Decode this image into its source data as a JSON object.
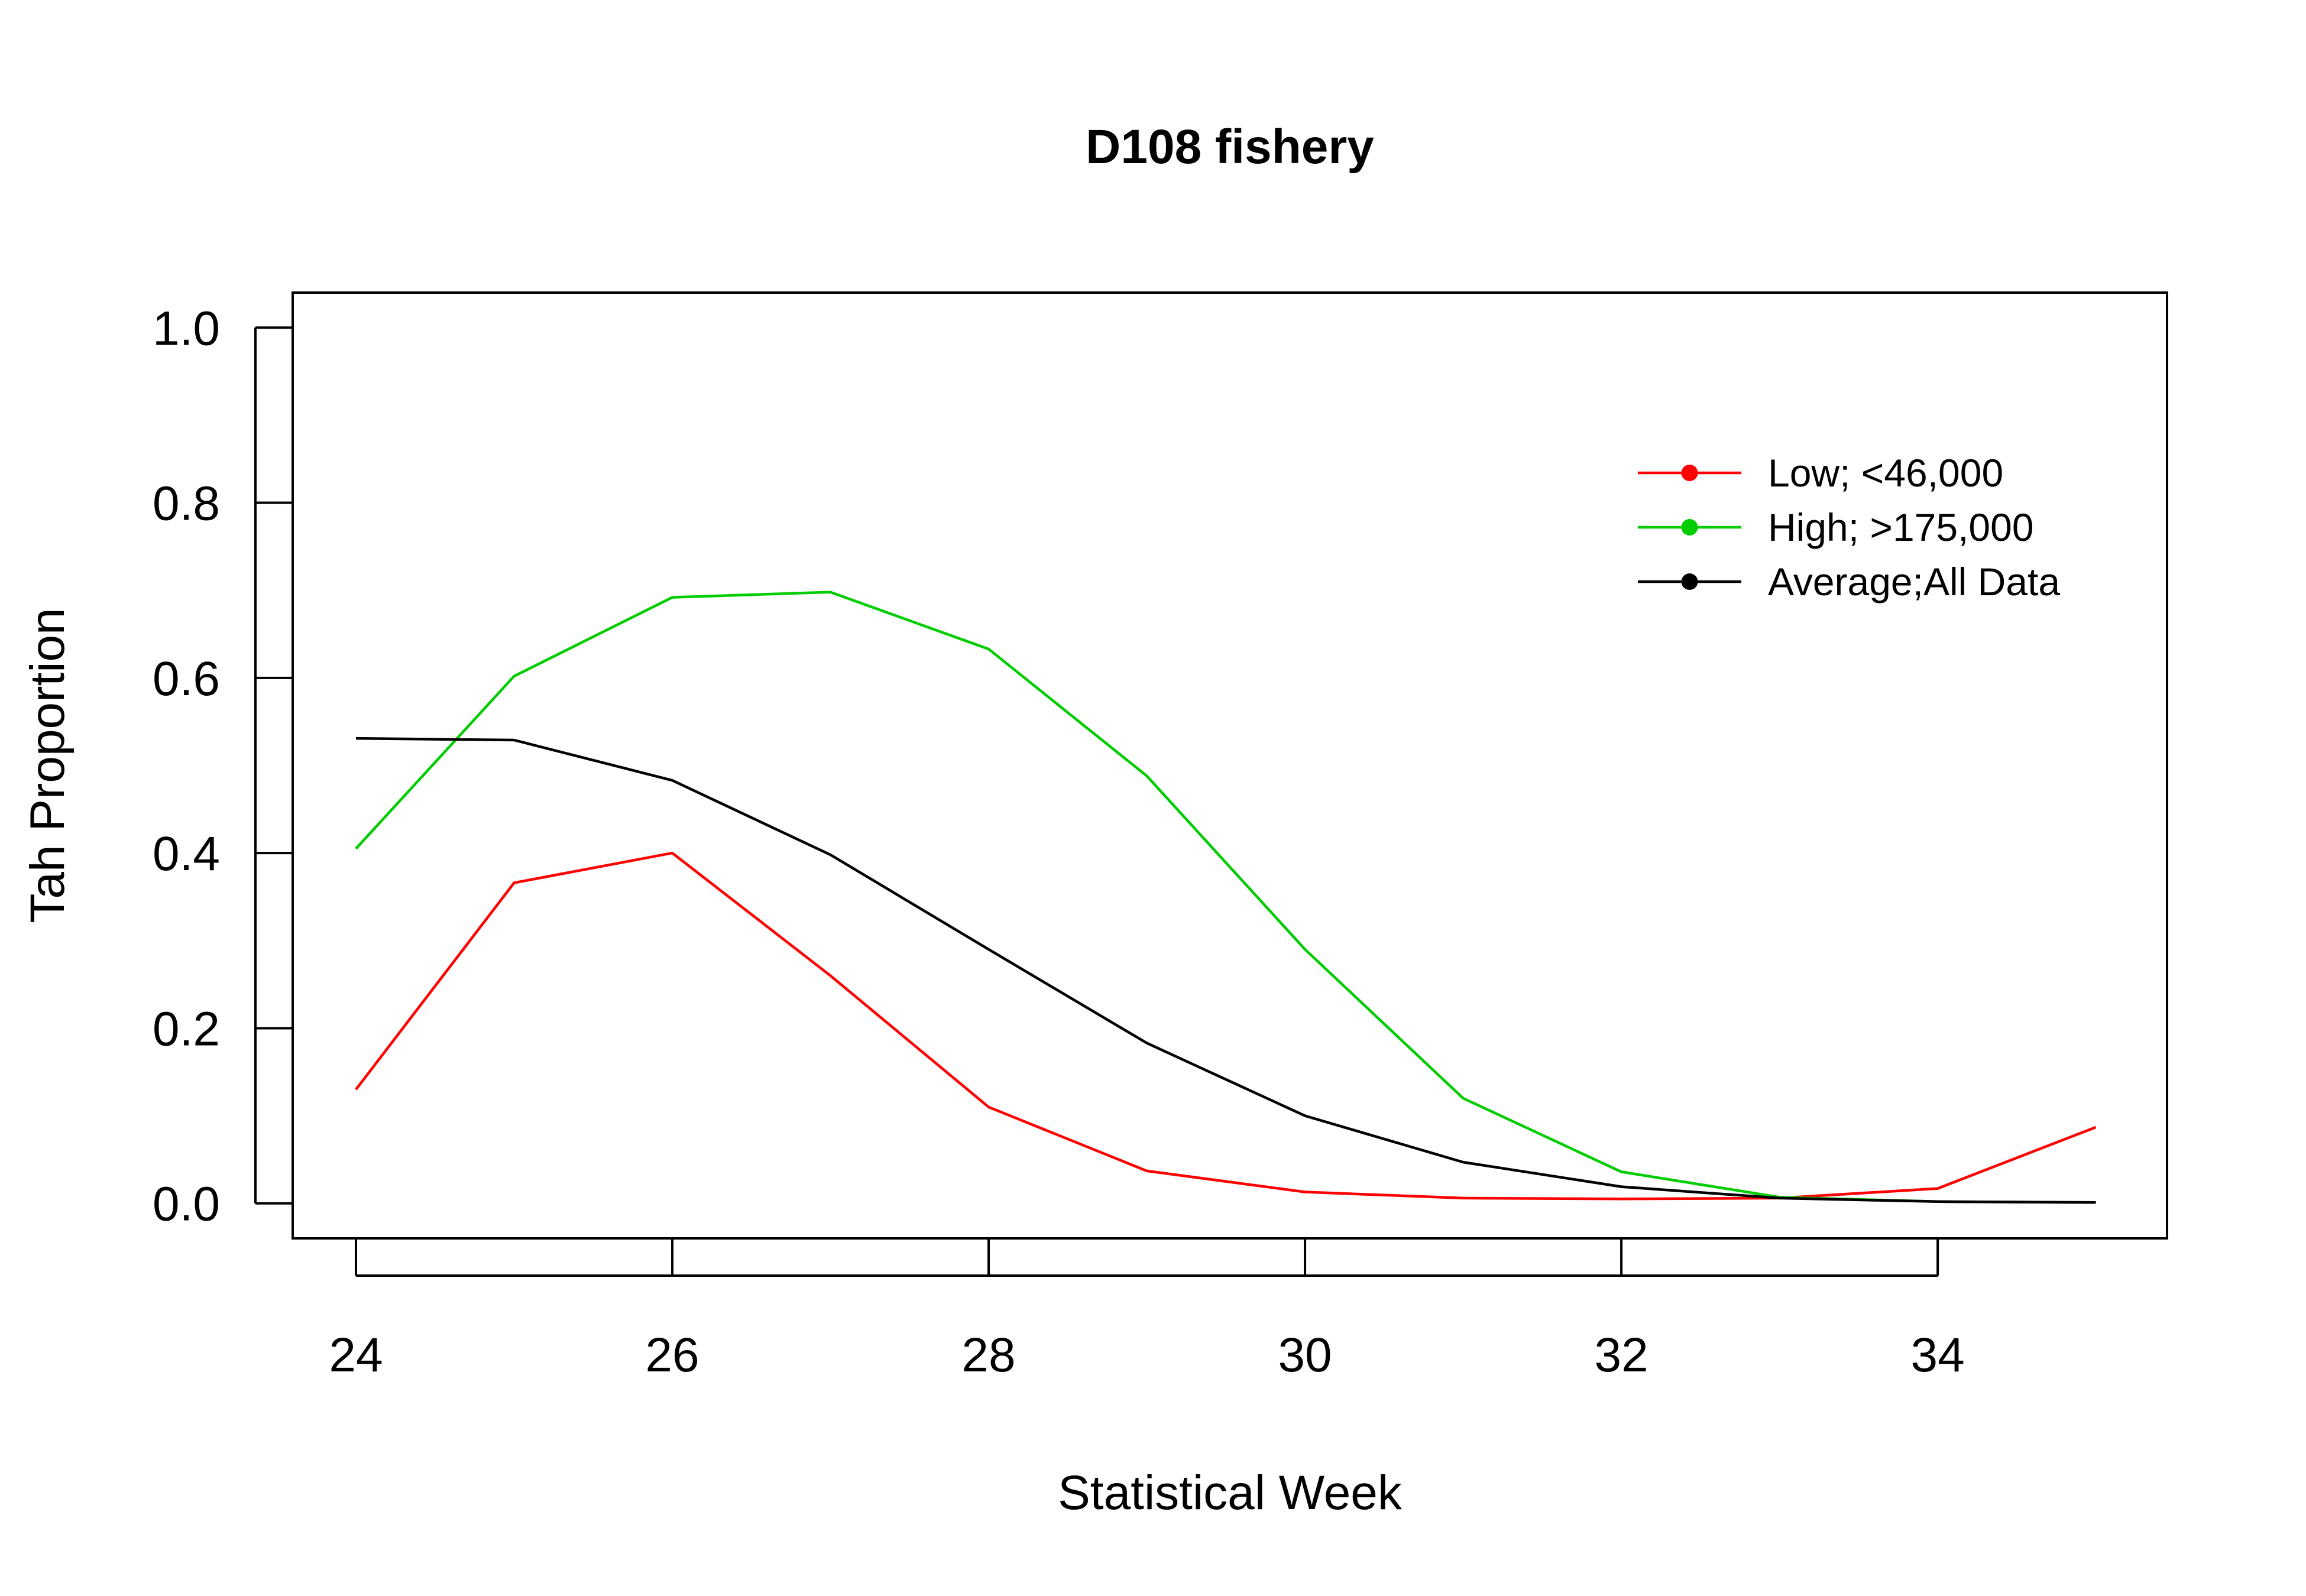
{
  "chart_data": {
    "type": "line",
    "title": "D108 fishery",
    "xlabel": "Statistical Week",
    "ylabel": "Tah Proportion",
    "xlim": [
      23.6,
      35.45
    ],
    "ylim": [
      -0.04,
      1.04
    ],
    "x_ticks": [
      24,
      26,
      28,
      30,
      32,
      34
    ],
    "y_ticks": [
      0.0,
      0.2,
      0.4,
      0.6,
      0.8,
      1.0
    ],
    "x_tick_labels": [
      "24",
      "26",
      "28",
      "30",
      "32",
      "34"
    ],
    "y_tick_labels": [
      "0.0",
      "0.2",
      "0.4",
      "0.6",
      "0.8",
      "1.0"
    ],
    "grid": false,
    "legend_position": "top-right",
    "x": [
      24,
      25,
      26,
      27,
      28,
      29,
      30,
      31,
      32,
      33,
      34,
      35
    ],
    "series": [
      {
        "name": "Low; <46,000",
        "color": "#ff0000",
        "values": [
          0.13,
          0.366,
          0.4,
          0.26,
          0.11,
          0.037,
          0.013,
          0.006,
          0.005,
          0.006,
          0.017,
          0.087
        ]
      },
      {
        "name": "High; >175,000",
        "color": "#00cd00",
        "values": [
          0.405,
          0.602,
          0.692,
          0.698,
          0.633,
          0.488,
          0.29,
          0.12,
          0.036,
          0.007,
          0.002,
          0.001
        ]
      },
      {
        "name": "Average;All Data",
        "color": "#000000",
        "values": [
          0.531,
          0.529,
          0.483,
          0.398,
          0.29,
          0.183,
          0.1,
          0.047,
          0.019,
          0.006,
          0.002,
          0.001
        ]
      }
    ]
  }
}
